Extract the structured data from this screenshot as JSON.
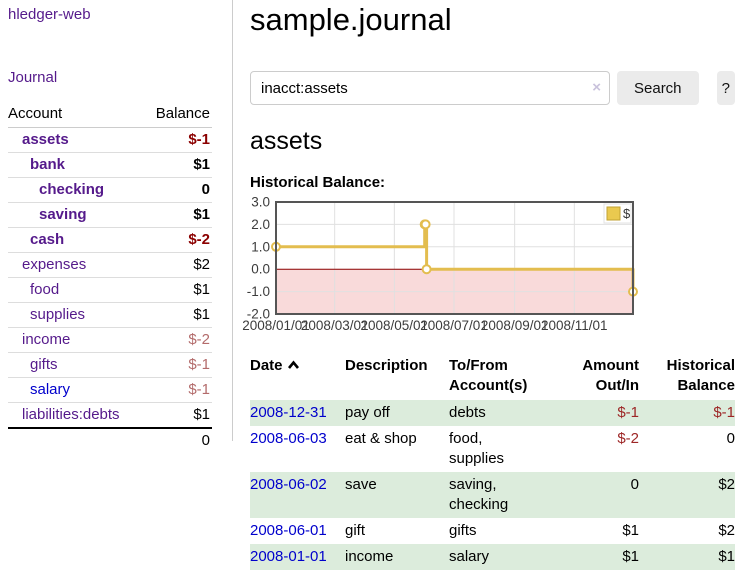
{
  "app_title": "hledger-web",
  "sidebar": {
    "journal_label": "Journal",
    "columns": {
      "account": "Account",
      "balance": "Balance"
    },
    "accounts": [
      {
        "name": "assets",
        "level": 1,
        "bold": true,
        "balance": "$-1",
        "balance_style": "neg-bold",
        "link": "visited"
      },
      {
        "name": "bank",
        "level": 2,
        "bold": true,
        "balance": "$1",
        "balance_style": "bold",
        "link": "visited"
      },
      {
        "name": "checking",
        "level": 3,
        "bold": true,
        "balance": "0",
        "balance_style": "bold",
        "link": "visited"
      },
      {
        "name": "saving",
        "level": 3,
        "bold": true,
        "balance": "$1",
        "balance_style": "bold",
        "link": "visited"
      },
      {
        "name": "cash",
        "level": 2,
        "bold": true,
        "balance": "$-2",
        "balance_style": "neg-bold",
        "link": "visited"
      },
      {
        "name": "expenses",
        "level": 1,
        "bold": false,
        "balance": "$2",
        "balance_style": "plain",
        "link": "visited"
      },
      {
        "name": "food",
        "level": 2,
        "bold": false,
        "balance": "$1",
        "balance_style": "plain",
        "link": "visited"
      },
      {
        "name": "supplies",
        "level": 2,
        "bold": false,
        "balance": "$1",
        "balance_style": "plain",
        "link": "visited"
      },
      {
        "name": "income",
        "level": 1,
        "bold": false,
        "balance": "$-2",
        "balance_style": "neg-muted",
        "link": "visited"
      },
      {
        "name": "gifts",
        "level": 2,
        "bold": false,
        "balance": "$-1",
        "balance_style": "neg-muted",
        "link": "visited"
      },
      {
        "name": "salary",
        "level": 2,
        "bold": false,
        "balance": "$-1",
        "balance_style": "neg-muted",
        "link": "unvisited"
      },
      {
        "name": "liabilities:debts",
        "level": 1,
        "bold": false,
        "balance": "$1",
        "balance_style": "plain",
        "link": "visited"
      }
    ],
    "total": "0"
  },
  "main": {
    "title": "sample.journal",
    "account_heading": "assets"
  },
  "search": {
    "value": "inacct:assets",
    "clear_glyph": "×",
    "button_label": "Search",
    "help_label": "?"
  },
  "chart_data": {
    "type": "line",
    "step": true,
    "title": "Historical Balance:",
    "x_range": [
      "2008-01-01",
      "2008-12-31"
    ],
    "ylim": [
      -2,
      3
    ],
    "y_ticks": [
      "3.0",
      "2.0",
      "1.0",
      "0.0",
      "-1.0",
      "-2.0"
    ],
    "x_ticks": [
      {
        "date": "2008-01-01",
        "label": "2008/01/01"
      },
      {
        "date": "2008-03-01",
        "label": "2008/03/01"
      },
      {
        "date": "2008-05-01",
        "label": "2008/05/01"
      },
      {
        "date": "2008-07-01",
        "label": "2008/07/01"
      },
      {
        "date": "2008-09-01",
        "label": "2008/09/01"
      },
      {
        "date": "2008-11-01",
        "label": "2008/11/01"
      }
    ],
    "series": [
      {
        "name": "$",
        "color": "#e3bd4f",
        "points": [
          [
            "2008-01-01",
            1
          ],
          [
            "2008-06-01",
            2
          ],
          [
            "2008-06-02",
            2
          ],
          [
            "2008-06-03",
            0
          ],
          [
            "2008-12-31",
            -1
          ]
        ]
      }
    ],
    "legend": {
      "position": "top-right",
      "label": "$"
    },
    "grid": true,
    "negative_region_color": "#f9dada",
    "zero_line_color": "#8b0000"
  },
  "register": {
    "columns": {
      "date": "Date",
      "description": "Description",
      "accounts": "To/From Account(s)",
      "amount": "Amount Out/In",
      "balance": "Historical Balance"
    },
    "sort": "date-ascending",
    "rows": [
      {
        "date": "2008-12-31",
        "description": "pay off",
        "accounts": "debts",
        "amount": "$-1",
        "amount_neg": true,
        "balance": "$-1",
        "balance_neg": true
      },
      {
        "date": "2008-06-03",
        "description": "eat & shop",
        "accounts": "food, supplies",
        "amount": "$-2",
        "amount_neg": true,
        "balance": "0",
        "balance_neg": false
      },
      {
        "date": "2008-06-02",
        "description": "save",
        "accounts": "saving, checking",
        "amount": "0",
        "amount_neg": false,
        "balance": "$2",
        "balance_neg": false
      },
      {
        "date": "2008-06-01",
        "description": "gift",
        "accounts": "gifts",
        "amount": "$1",
        "amount_neg": false,
        "balance": "$2",
        "balance_neg": false
      },
      {
        "date": "2008-01-01",
        "description": "income",
        "accounts": "salary",
        "amount": "$1",
        "amount_neg": false,
        "balance": "$1",
        "balance_neg": false
      }
    ]
  },
  "colors": {
    "link_visited": "#551a8b",
    "link_unvisited": "#0000cc",
    "negative_bold": "#8b0000",
    "negative": "#9d2626",
    "negative_muted": "#b36b6b",
    "row_stripe": "#dcecdc",
    "chart_line": "#e3bd4f",
    "chart_negative_fill": "#f9dada",
    "chart_zero_line": "#8b0000",
    "chart_border": "#555555"
  }
}
